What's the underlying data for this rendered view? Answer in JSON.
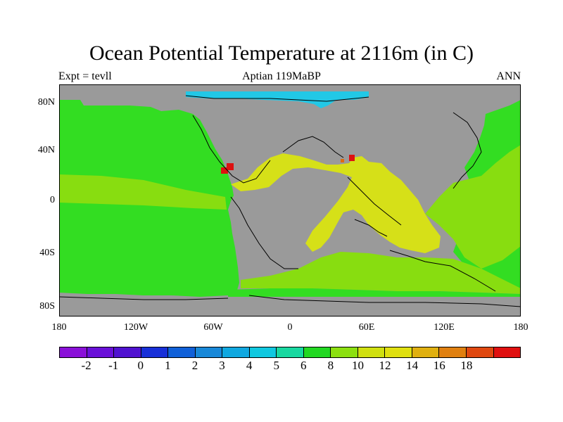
{
  "title": "Ocean Potential Temperature at 2116m (in C)",
  "subtitle_left": "Expt = tevll",
  "subtitle_center": "Aptian  119MaBP",
  "subtitle_right": "ANN",
  "y_ticks": [
    "80N",
    "40N",
    "0",
    "40S",
    "80S"
  ],
  "x_ticks": [
    "180",
    "120W",
    "60W",
    "0",
    "60E",
    "120E",
    "180"
  ],
  "colorbar": {
    "colors": [
      "#8a10d8",
      "#6a10d8",
      "#5012d0",
      "#1830d8",
      "#1060d8",
      "#1888d8",
      "#10a8e0",
      "#10c8e0",
      "#18d8a0",
      "#22d822",
      "#8ce010",
      "#d0e010",
      "#e0e010",
      "#e0b010",
      "#e08010",
      "#e04810",
      "#e01010"
    ],
    "labels": [
      "-2",
      "-1",
      "0",
      "1",
      "2",
      "3",
      "4",
      "5",
      "6",
      "8",
      "10",
      "12",
      "14",
      "16",
      "18"
    ]
  },
  "palette": {
    "land": "#9a9a9a",
    "t_5": "#22c8e6",
    "t_8": "#33dd22",
    "t_10": "#88dd10",
    "t_12": "#d6e018",
    "t_16": "#e06a10",
    "t_18": "#dd1111"
  }
}
